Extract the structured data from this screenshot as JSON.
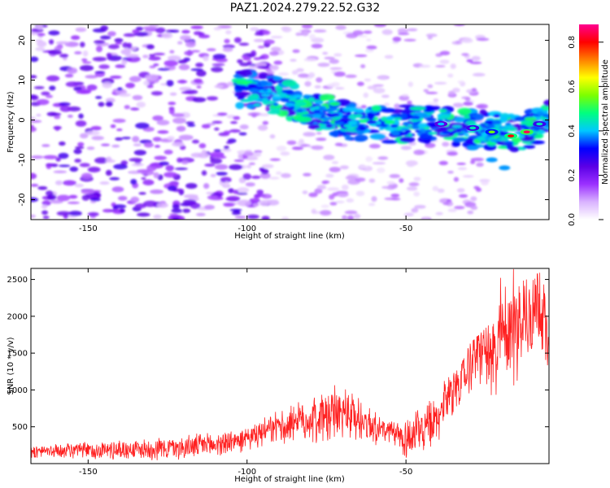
{
  "title": "PAZ1.2024.279.22.52.G32",
  "chart_data": [
    {
      "type": "heatmap",
      "title": "PAZ1.2024.279.22.52.G32",
      "xlabel": "Height of straight line (km)",
      "ylabel": "Frequency (Hz)",
      "xlim": [
        -168,
        -5
      ],
      "ylim": [
        -25,
        24
      ],
      "xticks": [
        -150,
        -100,
        -50
      ],
      "yticks": [
        -20,
        -10,
        0,
        10,
        20
      ],
      "colorbar": {
        "label": "Normalized spectral amplitude",
        "range": [
          0,
          0.88
        ],
        "ticks": [
          0.0,
          0.2,
          0.4,
          0.6,
          0.8
        ],
        "colors": [
          "#ffffff",
          "#d9b3ff",
          "#9b30ff",
          "#5a00e6",
          "#0000ff",
          "#00c8ff",
          "#00ff80",
          "#7cff00",
          "#ffff00",
          "#ff8000",
          "#ff0000",
          "#ff0090"
        ]
      },
      "ridge": [
        {
          "x": -100,
          "y": 8
        },
        {
          "x": -90,
          "y": 6
        },
        {
          "x": -80,
          "y": 3
        },
        {
          "x": -70,
          "y": 0
        },
        {
          "x": -60,
          "y": -1
        },
        {
          "x": -50,
          "y": -1
        },
        {
          "x": -40,
          "y": -1
        },
        {
          "x": -30,
          "y": -2
        },
        {
          "x": -20,
          "y": -3
        },
        {
          "x": -13,
          "y": -3
        },
        {
          "x": -5,
          "y": 0
        }
      ],
      "peaks": [
        {
          "x": -12,
          "y": -3,
          "amp": 0.85
        },
        {
          "x": -17,
          "y": -4,
          "amp": 0.8
        },
        {
          "x": -23,
          "y": -3,
          "amp": 0.55
        },
        {
          "x": -29,
          "y": -2,
          "amp": 0.45
        },
        {
          "x": -39,
          "y": -1,
          "amp": 0.4
        },
        {
          "x": -8,
          "y": -1,
          "amp": 0.45
        }
      ],
      "branch": [
        {
          "x": -29,
          "y": -7
        },
        {
          "x": -23,
          "y": -10
        },
        {
          "x": -19,
          "y": -12
        }
      ]
    },
    {
      "type": "line",
      "xlabel": "Height of straight line (km)",
      "ylabel": "SNR (10 * v/v)",
      "xlim": [
        -168,
        -5
      ],
      "ylim": [
        0,
        2650
      ],
      "xticks": [
        -150,
        -100,
        -50
      ],
      "yticks": [
        500,
        1000,
        1500,
        2000,
        2500
      ],
      "series": [
        {
          "color": "#ff2020",
          "x": [
            -168,
            -160,
            -150,
            -140,
            -130,
            -120,
            -110,
            -100,
            -95,
            -90,
            -85,
            -80,
            -75,
            -70,
            -65,
            -60,
            -55,
            -50,
            -45,
            -40,
            -38,
            -35,
            -32,
            -30,
            -28,
            -25,
            -22,
            -20,
            -18,
            -15,
            -12,
            -10,
            -8,
            -5
          ],
          "y": [
            150,
            150,
            150,
            155,
            165,
            180,
            220,
            300,
            370,
            450,
            520,
            530,
            560,
            600,
            540,
            470,
            380,
            280,
            350,
            480,
            800,
            1000,
            1100,
            1300,
            1500,
            1500,
            1200,
            1600,
            1700,
            1750,
            1900,
            2050,
            2300,
            1500
          ],
          "envelope": [
            {
              "x": -167,
              "y": 260
            },
            {
              "x": -100,
              "y": 500
            },
            {
              "x": -70,
              "y": 1180
            },
            {
              "x": -55,
              "y": 580
            },
            {
              "x": -45,
              "y": 870
            },
            {
              "x": -33,
              "y": 1300
            },
            {
              "x": -30,
              "y": 1620
            },
            {
              "x": -24,
              "y": 1880
            },
            {
              "x": -20,
              "y": 2640
            },
            {
              "x": -15,
              "y": 2640
            },
            {
              "x": -10,
              "y": 2540
            },
            {
              "x": -7,
              "y": 2620
            },
            {
              "x": -5,
              "y": 1600
            }
          ]
        }
      ]
    }
  ]
}
